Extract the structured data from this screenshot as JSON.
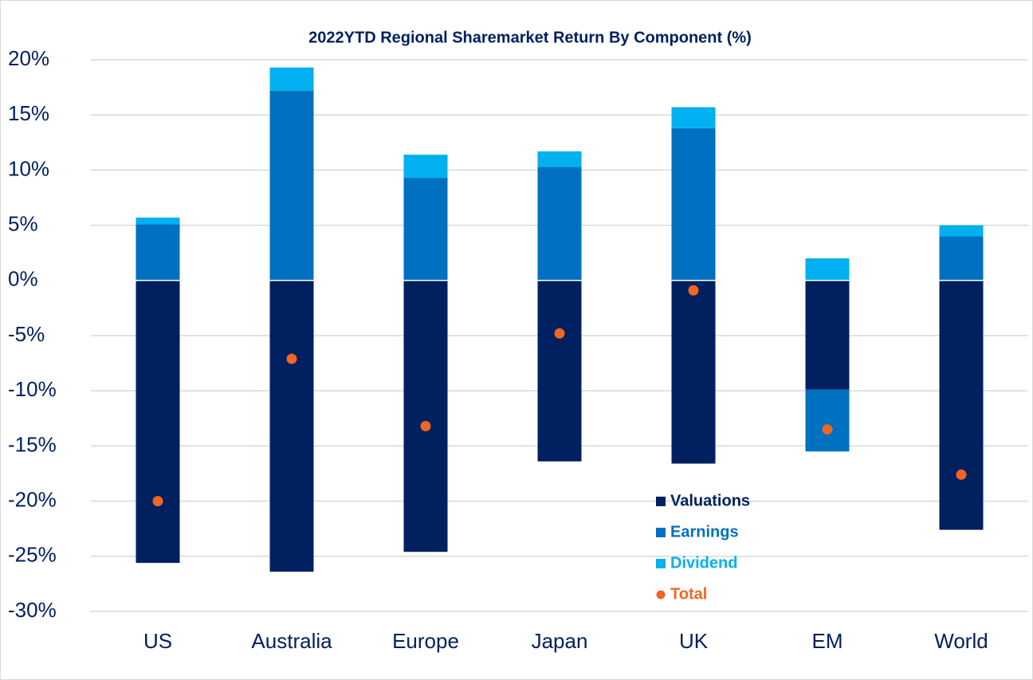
{
  "chart_data": {
    "type": "bar",
    "stacked": true,
    "title": "2022YTD Regional Sharemarket Return By Component (%)",
    "categories": [
      "US",
      "Australia",
      "Europe",
      "Japan",
      "UK",
      "EM",
      "World"
    ],
    "series": [
      {
        "name": "Valuations",
        "color": "#002060",
        "values": [
          -25.6,
          -26.4,
          -24.6,
          -16.4,
          -16.6,
          -9.9,
          -22.6
        ]
      },
      {
        "name": "Earnings",
        "color": "#0070c0",
        "values": [
          5.1,
          17.2,
          9.3,
          10.3,
          13.8,
          -5.6,
          4.0
        ]
      },
      {
        "name": "Dividend",
        "color": "#00b0f0",
        "values": [
          0.6,
          2.1,
          2.1,
          1.4,
          1.9,
          2.0,
          1.0
        ]
      },
      {
        "name": "Total",
        "type": "scatter",
        "color": "#f26522",
        "values": [
          -20.0,
          -7.1,
          -13.2,
          -4.8,
          -0.9,
          -13.5,
          -17.6
        ]
      }
    ],
    "ylim": [
      -30,
      20
    ],
    "yticks": [
      {
        "value": -30,
        "label": "-30%"
      },
      {
        "value": -25,
        "label": "-25%"
      },
      {
        "value": -20,
        "label": "-20%"
      },
      {
        "value": -15,
        "label": "-15%"
      },
      {
        "value": -10,
        "label": "-10%"
      },
      {
        "value": -5,
        "label": "-5%"
      },
      {
        "value": 0,
        "label": "0%"
      },
      {
        "value": 5,
        "label": "5%"
      },
      {
        "value": 10,
        "label": "10%"
      },
      {
        "value": 15,
        "label": "15%"
      },
      {
        "value": 20,
        "label": "20%"
      }
    ],
    "grid": true,
    "legend": "lower right"
  }
}
